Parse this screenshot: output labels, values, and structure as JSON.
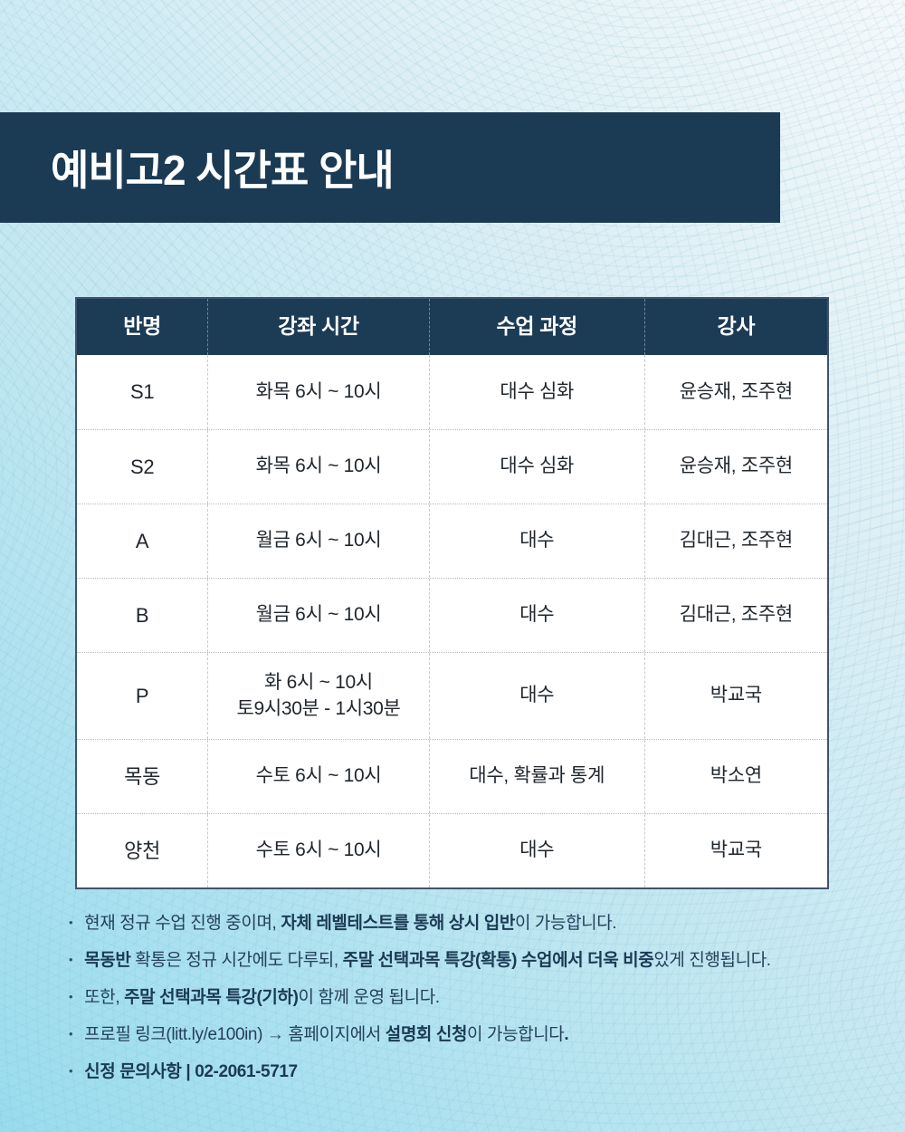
{
  "title": "예비고2 시간표 안내",
  "colors": {
    "banner_bg": "#1b3a54",
    "table_header_bg": "#1c3b55",
    "page_bg_light": "#f5f9fa",
    "page_bg_deep": "#99dcee",
    "note_text": "#24405a"
  },
  "table": {
    "headers": [
      "반명",
      "강좌 시간",
      "수업 과정",
      "강사"
    ],
    "rows": [
      {
        "class": "S1",
        "time": "화목 6시 ~ 10시",
        "course": "대수 심화",
        "teacher": "윤승재, 조주현"
      },
      {
        "class": "S2",
        "time": "화목 6시 ~ 10시",
        "course": "대수 심화",
        "teacher": "윤승재, 조주현"
      },
      {
        "class": "A",
        "time": "월금 6시 ~ 10시",
        "course": "대수",
        "teacher": "김대근, 조주현"
      },
      {
        "class": "B",
        "time": "월금 6시 ~ 10시",
        "course": "대수",
        "teacher": "김대근, 조주현"
      },
      {
        "class": "P",
        "time": [
          "화 6시 ~ 10시",
          "토9시30분 - 1시30분"
        ],
        "course": "대수",
        "teacher": "박교국"
      },
      {
        "class": "목동",
        "time": "수토 6시 ~ 10시",
        "course": "대수, 확률과 통계",
        "teacher": "박소연"
      },
      {
        "class": "양천",
        "time": "수토 6시 ~ 10시",
        "course": "대수",
        "teacher": "박교국"
      }
    ]
  },
  "notes": {
    "bullet": "•",
    "items": [
      {
        "s": [
          {
            "t": "현재 정규 수업 진행 중이며, "
          },
          {
            "t": "자체 레벨테스트를 통해 상시 입반"
          },
          {
            "t": "이 가능합니다."
          }
        ]
      },
      {
        "s": [
          {
            "t": "목동반"
          },
          {
            "t": " 확통은 정규 시간에도 다루되, "
          },
          {
            "t": "주말 선택과목 특강(확통) 수업에서 더욱 비중"
          },
          {
            "t": "있게 진행됩니다."
          }
        ]
      },
      {
        "s": [
          {
            "t": "또한, "
          },
          {
            "t": "주말 선택과목 특강(기하)"
          },
          {
            "t": "이 함께 운영 됩니다."
          }
        ]
      },
      {
        "s": [
          {
            "t": "프로필 링크(litt.ly/e100in) → 홈페이지에서 "
          },
          {
            "t": "설명회 신청"
          },
          {
            "t": "이 가능합니다"
          },
          {
            "t": "."
          }
        ]
      },
      {
        "s": [
          {
            "t": "신정 문의사항 |  02-2061-5717"
          }
        ]
      }
    ]
  }
}
